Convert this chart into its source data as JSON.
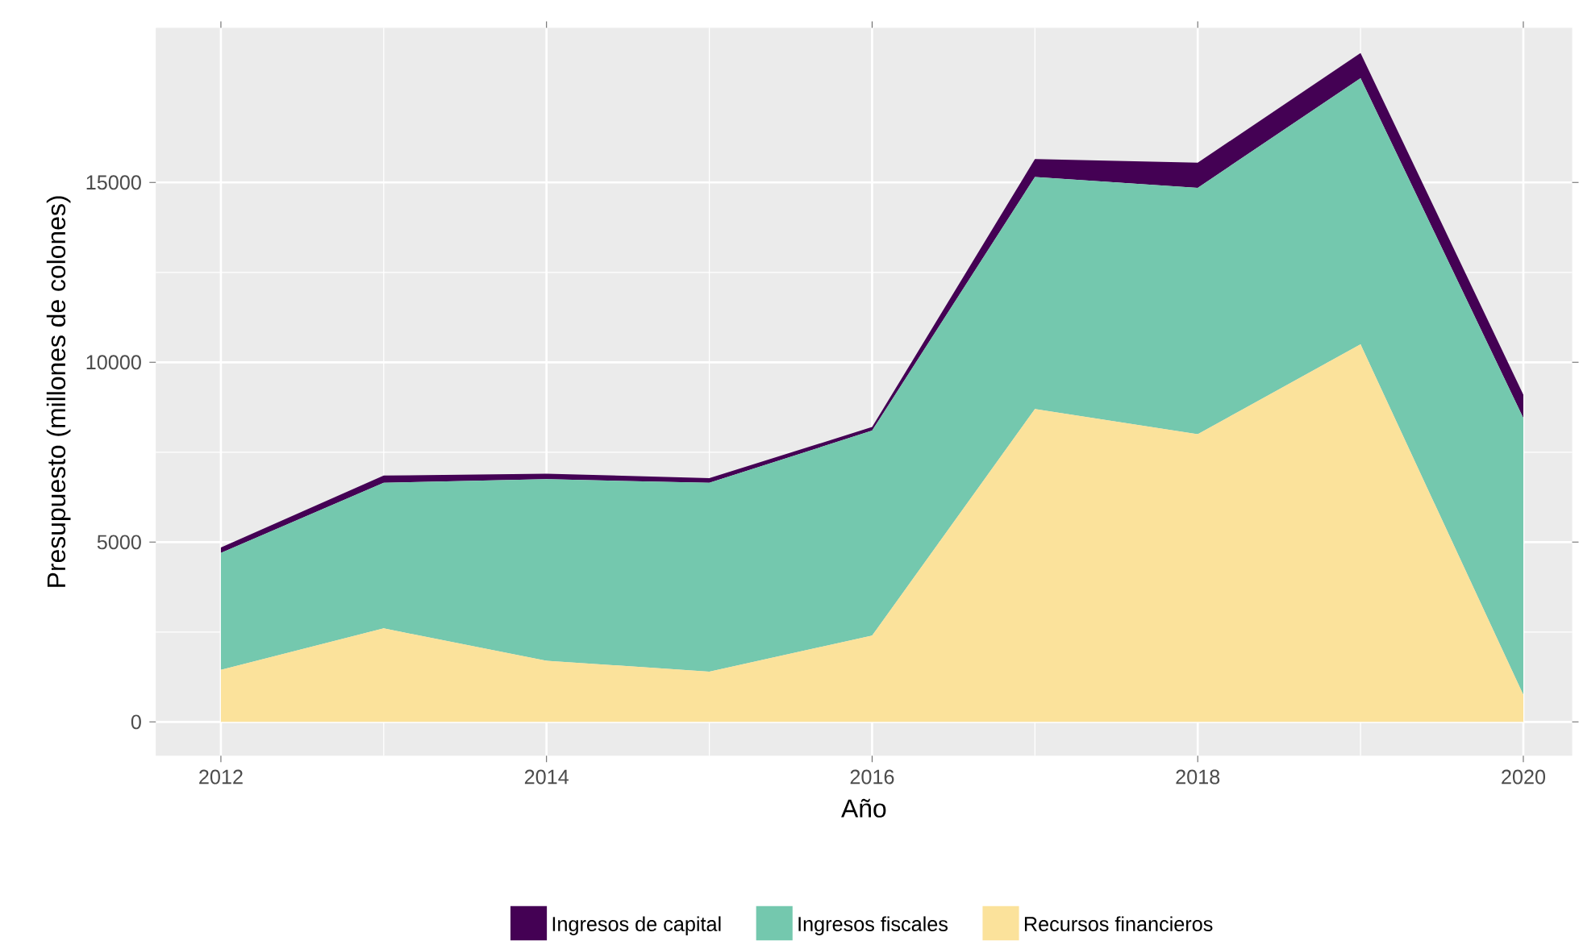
{
  "chart_data": {
    "type": "area",
    "stacked": true,
    "xlabel": "Año",
    "ylabel": "Presupuesto (millones de colones)",
    "x": [
      2012,
      2013,
      2014,
      2015,
      2016,
      2017,
      2018,
      2019,
      2020
    ],
    "series": [
      {
        "name": "Recursos financieros",
        "color": "#fbe29b",
        "values": [
          1450,
          2600,
          1700,
          1400,
          2400,
          8700,
          8000,
          10500,
          750
        ]
      },
      {
        "name": "Ingresos fiscales",
        "color": "#74c8ae",
        "values": [
          3250,
          4050,
          5050,
          5250,
          5700,
          6450,
          6850,
          7400,
          7700
        ]
      },
      {
        "name": "Ingresos de capital",
        "color": "#440154",
        "values": [
          150,
          200,
          150,
          130,
          100,
          500,
          700,
          700,
          650
        ]
      }
    ],
    "xlim": [
      2011.6,
      2020.3
    ],
    "ylim": [
      -940,
      19300
    ],
    "xticks": [
      2012,
      2014,
      2016,
      2018,
      2020
    ],
    "yticks": [
      0,
      5000,
      10000,
      15000
    ],
    "grid": true,
    "legend": "bottom",
    "marker": "none"
  }
}
